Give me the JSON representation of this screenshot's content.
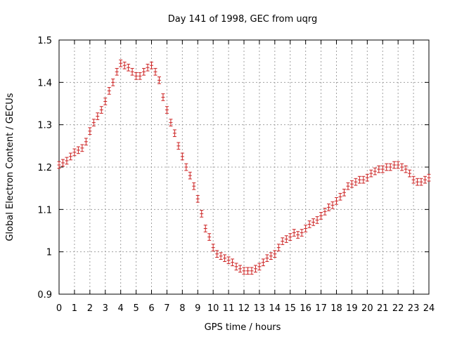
{
  "chart_data": {
    "type": "scatter",
    "title": "Day 141 of 1998, GEC from uqrg",
    "xlabel": "GPS time / hours",
    "ylabel": "Global Electron Content / GECUs",
    "xlim": [
      0,
      24
    ],
    "ylim": [
      0.9,
      1.5
    ],
    "grid": true,
    "x_ticks": [
      0,
      1,
      2,
      3,
      4,
      5,
      6,
      7,
      8,
      9,
      10,
      11,
      12,
      13,
      14,
      15,
      16,
      17,
      18,
      19,
      20,
      21,
      22,
      23,
      24
    ],
    "x_tick_labels": [
      "0",
      "1",
      "2",
      "3",
      "4",
      "5",
      "6",
      "7",
      "8",
      "9",
      "10",
      "11",
      "12",
      "13",
      "14",
      "15",
      "16",
      "17",
      "18",
      "19",
      "20",
      "21",
      "22",
      "23",
      "24"
    ],
    "y_ticks": [
      0.9,
      1.0,
      1.1,
      1.2,
      1.3,
      1.4,
      1.5
    ],
    "y_tick_labels": [
      "0.9",
      "1",
      "1.1",
      "1.2",
      "1.3",
      "1.4",
      "1.5"
    ],
    "color": "#cc2222",
    "error": 0.008,
    "series": [
      {
        "name": "GEC",
        "x": [
          0,
          0.25,
          0.5,
          0.75,
          1,
          1.25,
          1.5,
          1.75,
          2,
          2.25,
          2.5,
          2.75,
          3,
          3.25,
          3.5,
          3.75,
          4,
          4.25,
          4.5,
          4.75,
          5,
          5.25,
          5.5,
          5.75,
          6,
          6.25,
          6.5,
          6.75,
          7,
          7.25,
          7.5,
          7.75,
          8,
          8.25,
          8.5,
          8.75,
          9,
          9.25,
          9.5,
          9.75,
          10,
          10.25,
          10.5,
          10.75,
          11,
          11.25,
          11.5,
          11.75,
          12,
          12.25,
          12.5,
          12.75,
          13,
          13.25,
          13.5,
          13.75,
          14,
          14.25,
          14.5,
          14.75,
          15,
          15.25,
          15.5,
          15.75,
          16,
          16.25,
          16.5,
          16.75,
          17,
          17.25,
          17.5,
          17.75,
          18,
          18.25,
          18.5,
          18.75,
          19,
          19.25,
          19.5,
          19.75,
          20,
          20.25,
          20.5,
          20.75,
          21,
          21.25,
          21.5,
          21.75,
          22,
          22.25,
          22.5,
          22.75,
          23,
          23.25,
          23.5,
          23.75,
          24
        ],
        "y": [
          1.205,
          1.21,
          1.215,
          1.225,
          1.235,
          1.24,
          1.245,
          1.26,
          1.285,
          1.305,
          1.32,
          1.335,
          1.355,
          1.38,
          1.4,
          1.425,
          1.445,
          1.44,
          1.435,
          1.425,
          1.415,
          1.415,
          1.425,
          1.435,
          1.44,
          1.425,
          1.405,
          1.365,
          1.335,
          1.305,
          1.28,
          1.25,
          1.225,
          1.2,
          1.18,
          1.155,
          1.125,
          1.09,
          1.055,
          1.035,
          1.01,
          0.995,
          0.99,
          0.985,
          0.98,
          0.975,
          0.965,
          0.96,
          0.955,
          0.955,
          0.955,
          0.96,
          0.965,
          0.975,
          0.985,
          0.99,
          0.995,
          1.01,
          1.025,
          1.03,
          1.035,
          1.045,
          1.04,
          1.045,
          1.055,
          1.065,
          1.07,
          1.075,
          1.085,
          1.095,
          1.105,
          1.11,
          1.12,
          1.13,
          1.14,
          1.155,
          1.16,
          1.165,
          1.17,
          1.17,
          1.175,
          1.185,
          1.19,
          1.195,
          1.195,
          1.2,
          1.2,
          1.205,
          1.205,
          1.2,
          1.195,
          1.185,
          1.17,
          1.165,
          1.165,
          1.17,
          1.175
        ]
      }
    ]
  }
}
